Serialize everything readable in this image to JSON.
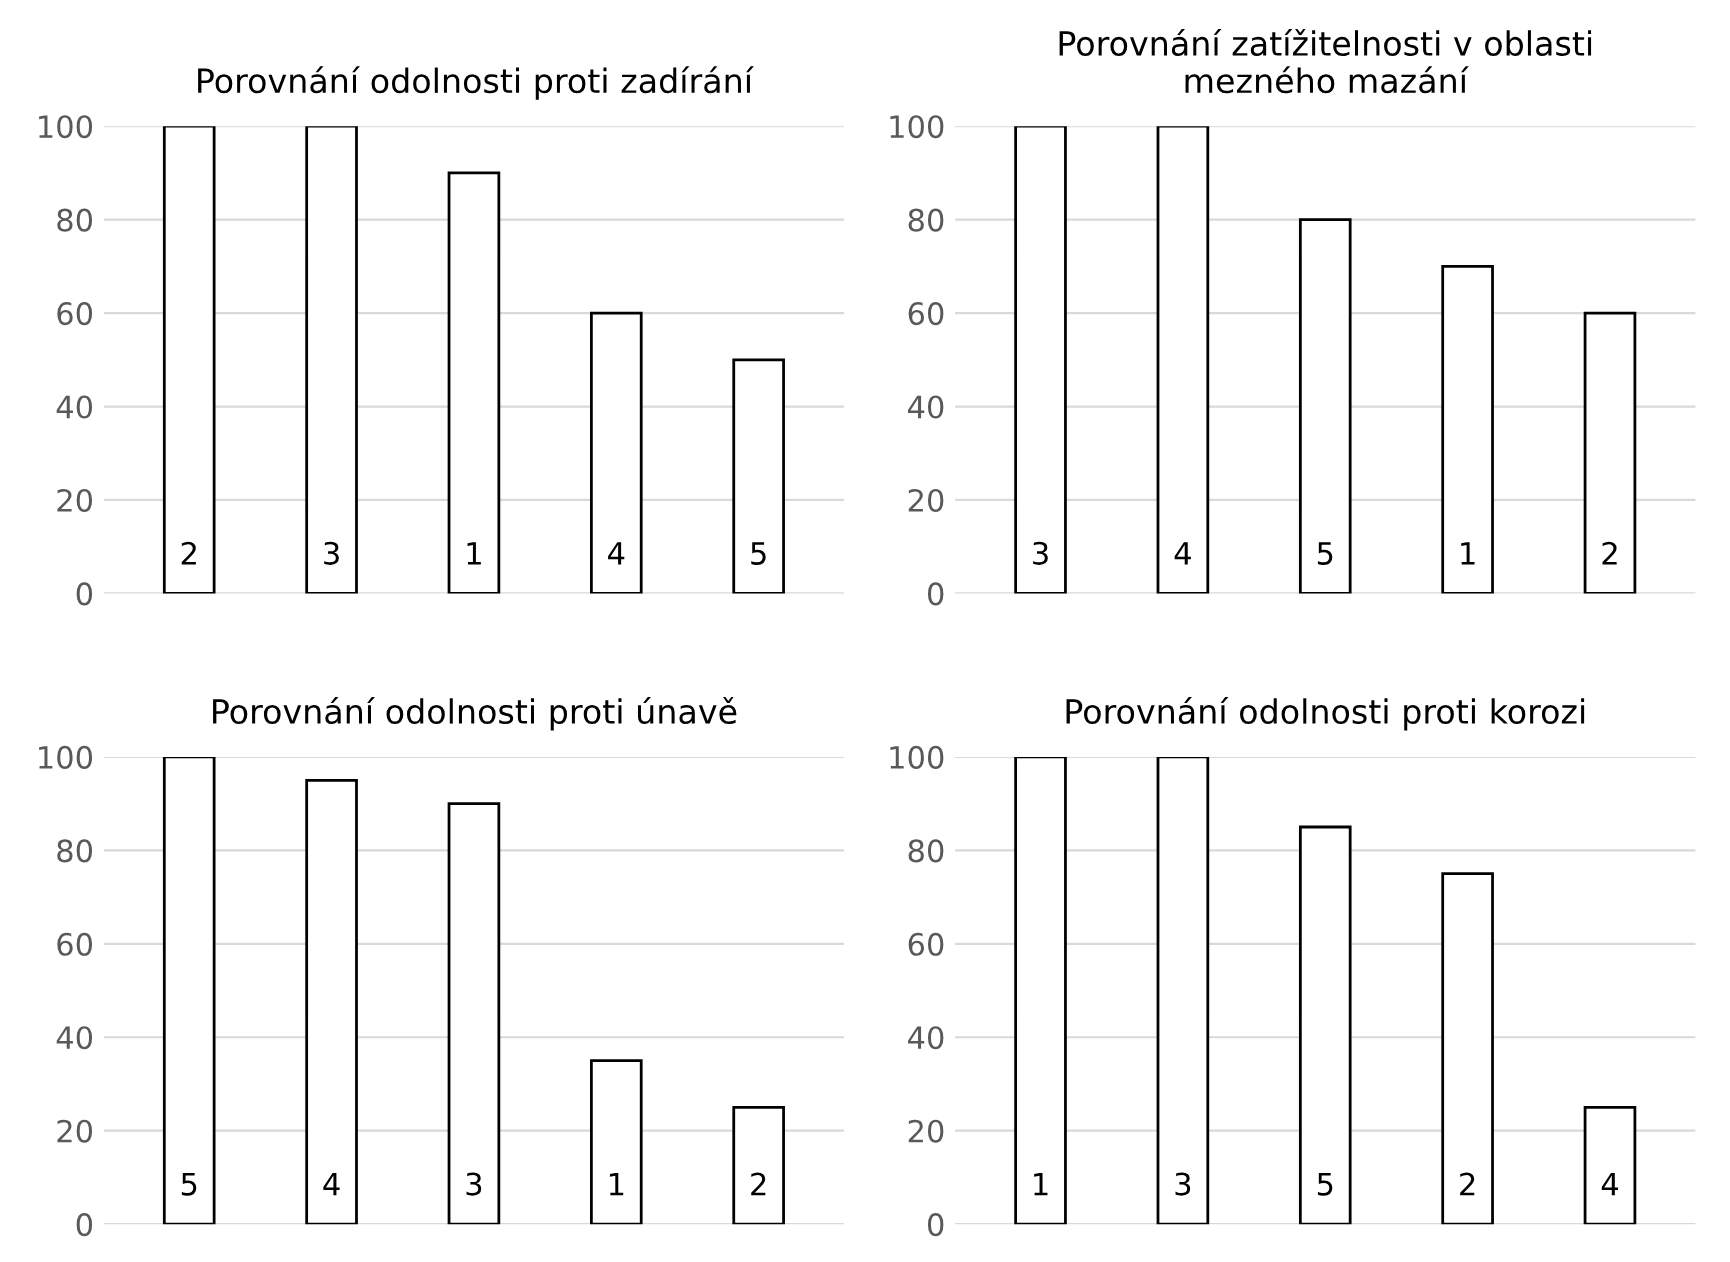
{
  "chart_data": [
    {
      "type": "bar",
      "title": "Porovnání odolnosti proti zadírání",
      "categories": [
        "2",
        "3",
        "1",
        "4",
        "5"
      ],
      "values": [
        100,
        100,
        90,
        60,
        50
      ],
      "color": "#ffffff",
      "ylim": [
        0,
        100
      ],
      "yticks": [
        0,
        20,
        40,
        60,
        80,
        100
      ],
      "grid": "y"
    },
    {
      "type": "bar",
      "title": "Porovnání zatížitelnosti v oblasti\nmezného mazání",
      "categories": [
        "3",
        "4",
        "5",
        "1",
        "2"
      ],
      "values": [
        100,
        100,
        80,
        70,
        60
      ],
      "color": "#ffffff",
      "ylim": [
        0,
        100
      ],
      "yticks": [
        0,
        20,
        40,
        60,
        80,
        100
      ],
      "grid": "y"
    },
    {
      "type": "bar",
      "title": "Porovnání odolnosti proti únavě",
      "categories": [
        "5",
        "4",
        "3",
        "1",
        "2"
      ],
      "values": [
        100,
        95,
        90,
        35,
        25
      ],
      "color": "#ffffff",
      "ylim": [
        0,
        100
      ],
      "yticks": [
        0,
        20,
        40,
        60,
        80,
        100
      ],
      "grid": "y"
    },
    {
      "type": "bar",
      "title": "Porovnání odolnosti proti korozi",
      "categories": [
        "1",
        "3",
        "5",
        "2",
        "4"
      ],
      "values": [
        100,
        100,
        85,
        75,
        25
      ],
      "color": "#ffffff",
      "ylim": [
        0,
        100
      ],
      "yticks": [
        0,
        20,
        40,
        60,
        80,
        100
      ],
      "grid": "y"
    }
  ]
}
